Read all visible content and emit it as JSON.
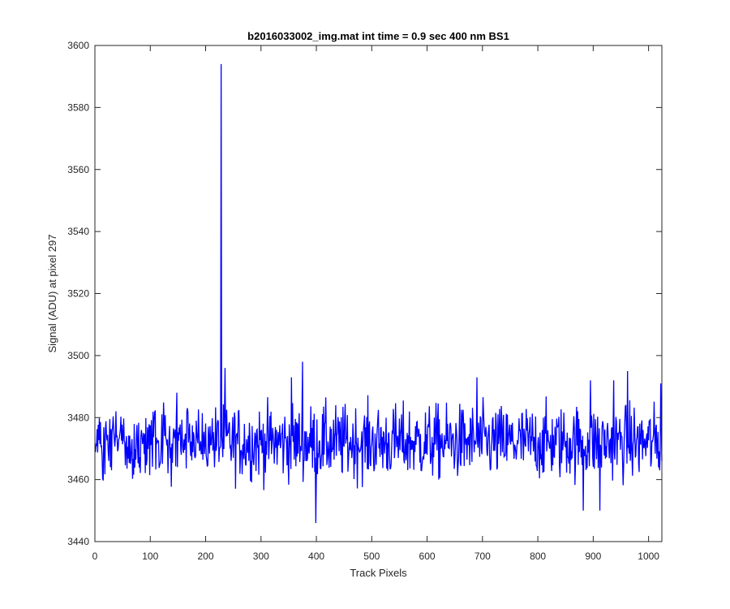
{
  "chart_data": {
    "type": "line",
    "title": "b2016033002_img.mat int time = 0.9 sec  400 nm BS1",
    "xlabel": "Track Pixels",
    "ylabel": "Signal (ADU) at pixel 297",
    "xlim": [
      0,
      1024
    ],
    "ylim": [
      3440,
      3600
    ],
    "xticks": [
      0,
      100,
      200,
      300,
      400,
      500,
      600,
      700,
      800,
      900,
      1000
    ],
    "yticks": [
      3440,
      3460,
      3480,
      3500,
      3520,
      3540,
      3560,
      3580,
      3600
    ],
    "grid": false,
    "series_color": "#0000ff",
    "series": [
      {
        "baseline": 3472,
        "noise_amplitude": 12,
        "x_start": 1,
        "x_end": 1024,
        "spikes": [
          {
            "x": 228,
            "y": 3594
          },
          {
            "x": 375,
            "y": 3498
          },
          {
            "x": 399,
            "y": 3446
          },
          {
            "x": 235,
            "y": 3496
          },
          {
            "x": 962,
            "y": 3495
          },
          {
            "x": 882,
            "y": 3450
          },
          {
            "x": 912,
            "y": 3450
          },
          {
            "x": 895,
            "y": 3492
          },
          {
            "x": 937,
            "y": 3492
          },
          {
            "x": 355,
            "y": 3493
          },
          {
            "x": 690,
            "y": 3493
          },
          {
            "x": 1022,
            "y": 3491
          }
        ]
      }
    ]
  }
}
